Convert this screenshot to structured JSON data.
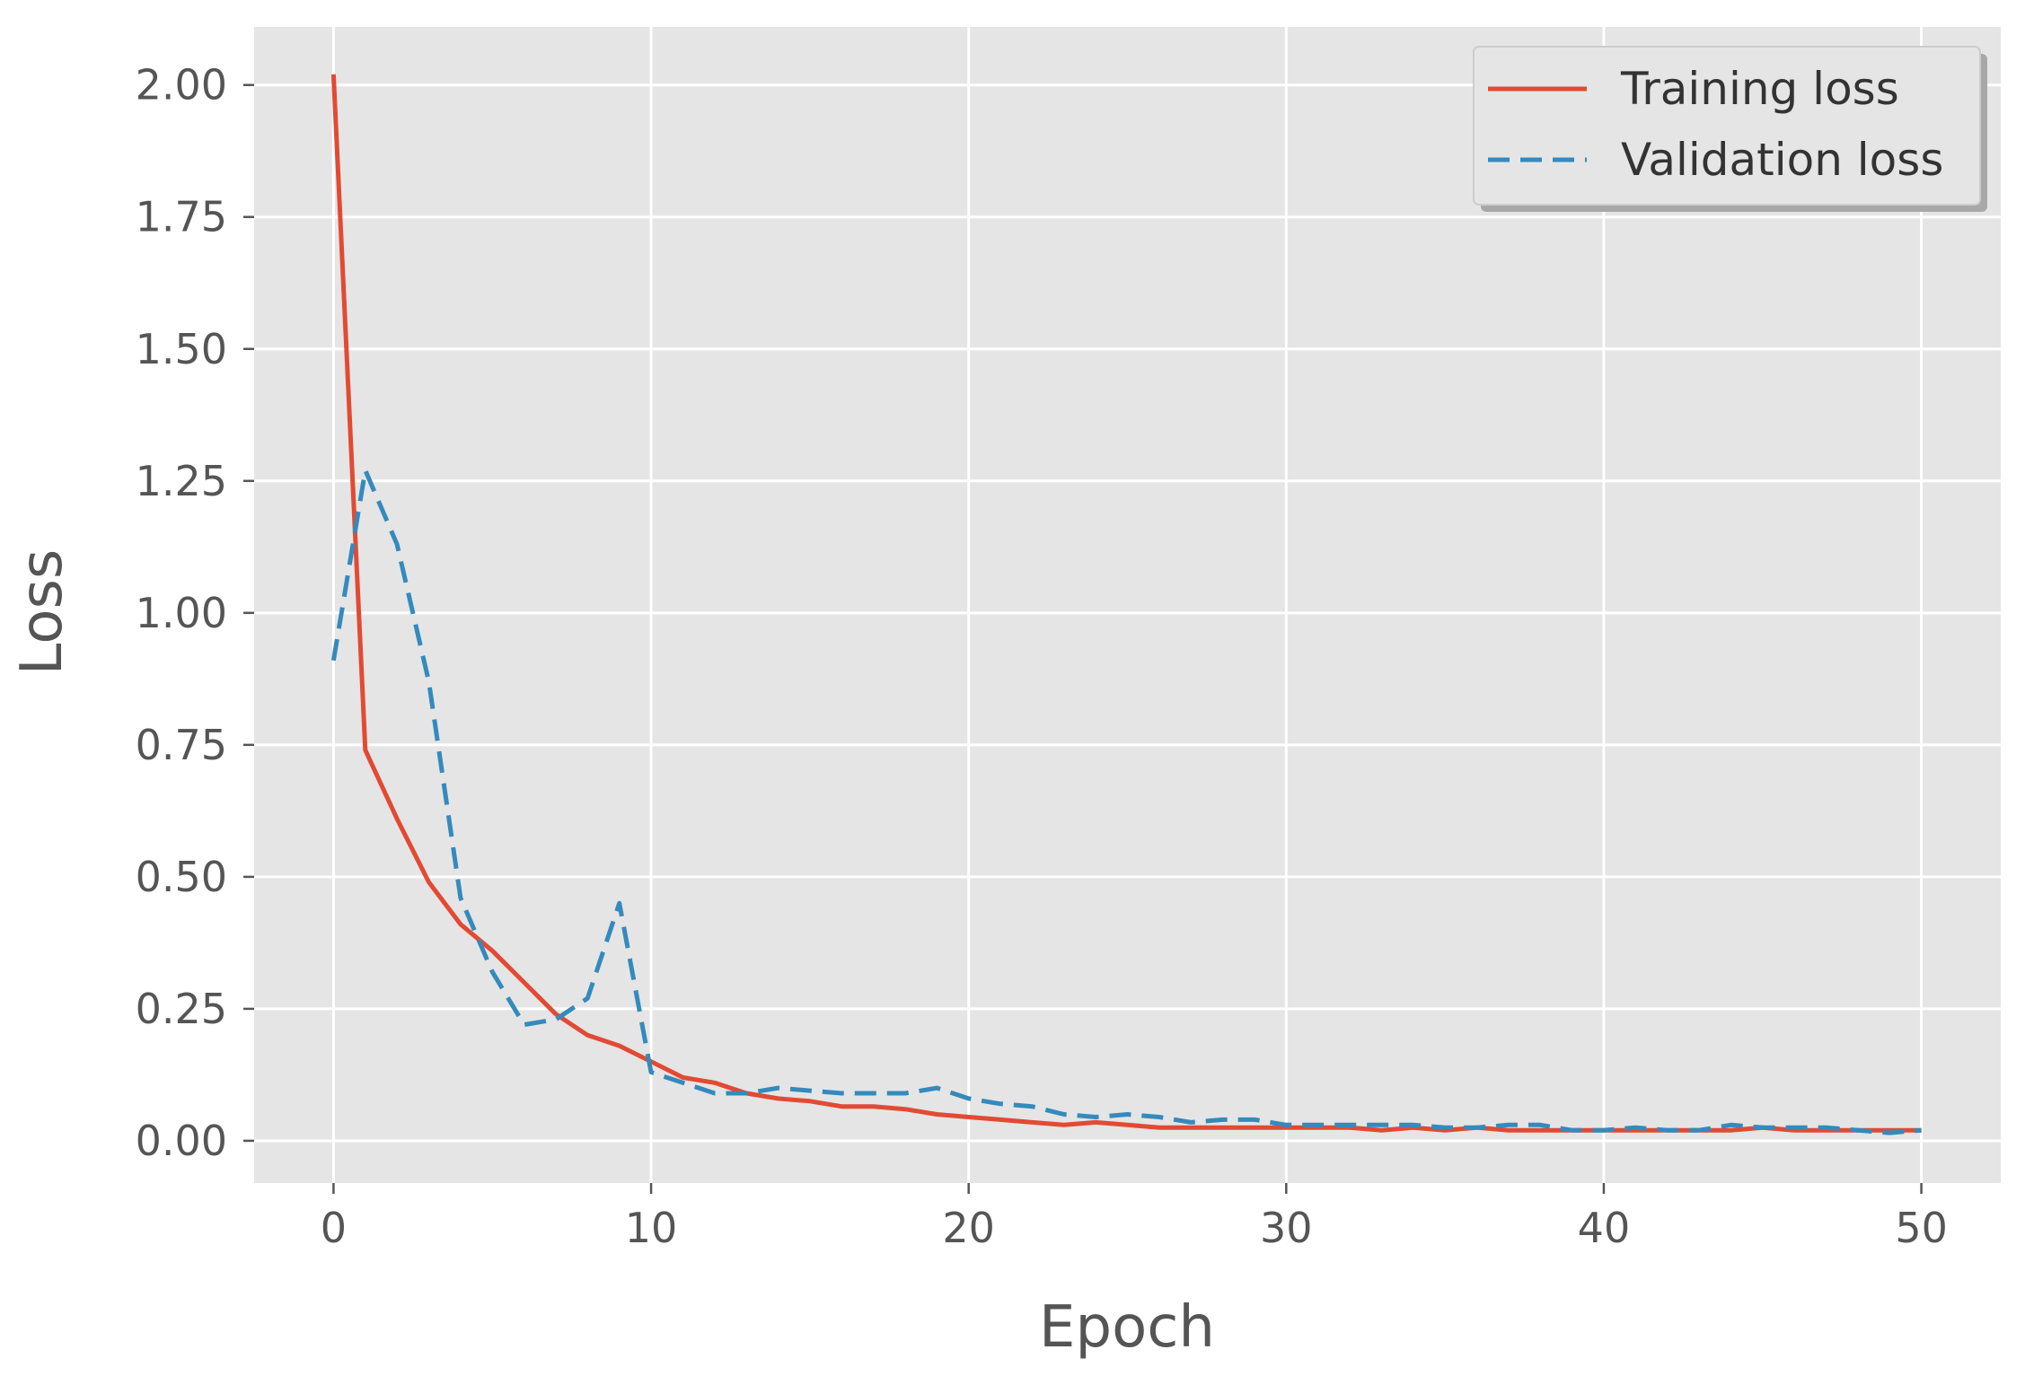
{
  "chart_data": {
    "type": "line",
    "title": "",
    "xlabel": "Epoch",
    "ylabel": "Loss",
    "xlim": [
      -2.5,
      52.5
    ],
    "ylim": [
      -0.08,
      2.11
    ],
    "xticks": [
      0,
      10,
      20,
      30,
      40,
      50
    ],
    "yticks": [
      0.0,
      0.25,
      0.5,
      0.75,
      1.0,
      1.25,
      1.5,
      1.75,
      2.0
    ],
    "ytick_labels": [
      "0.00",
      "0.25",
      "0.50",
      "0.75",
      "1.00",
      "1.25",
      "1.50",
      "1.75",
      "2.00"
    ],
    "grid": true,
    "background": "#e5e5e5",
    "legend_position": "top-right",
    "series": [
      {
        "name": "Training loss",
        "color": "#e24a33",
        "style": "solid",
        "x": [
          0,
          1,
          2,
          3,
          4,
          5,
          6,
          7,
          8,
          9,
          10,
          11,
          12,
          13,
          14,
          15,
          16,
          17,
          18,
          19,
          20,
          21,
          22,
          23,
          24,
          25,
          26,
          27,
          28,
          29,
          30,
          31,
          32,
          33,
          34,
          35,
          36,
          37,
          38,
          39,
          40,
          41,
          42,
          43,
          44,
          45,
          46,
          47,
          48,
          49,
          50
        ],
        "values": [
          2.02,
          0.74,
          0.61,
          0.49,
          0.41,
          0.36,
          0.3,
          0.24,
          0.2,
          0.18,
          0.15,
          0.12,
          0.11,
          0.09,
          0.08,
          0.075,
          0.065,
          0.065,
          0.06,
          0.05,
          0.045,
          0.04,
          0.035,
          0.03,
          0.035,
          0.03,
          0.025,
          0.025,
          0.025,
          0.025,
          0.025,
          0.025,
          0.025,
          0.02,
          0.025,
          0.02,
          0.025,
          0.02,
          0.02,
          0.02,
          0.02,
          0.02,
          0.02,
          0.02,
          0.02,
          0.025,
          0.02,
          0.02,
          0.02,
          0.02,
          0.02
        ]
      },
      {
        "name": "Validation loss",
        "color": "#348abd",
        "style": "dashed",
        "x": [
          0,
          1,
          2,
          3,
          4,
          5,
          6,
          7,
          8,
          9,
          10,
          11,
          12,
          13,
          14,
          15,
          16,
          17,
          18,
          19,
          20,
          21,
          22,
          23,
          24,
          25,
          26,
          27,
          28,
          29,
          30,
          31,
          32,
          33,
          34,
          35,
          36,
          37,
          38,
          39,
          40,
          41,
          42,
          43,
          44,
          45,
          46,
          47,
          48,
          49,
          50
        ],
        "values": [
          0.91,
          1.27,
          1.13,
          0.87,
          0.46,
          0.32,
          0.22,
          0.23,
          0.27,
          0.45,
          0.13,
          0.11,
          0.09,
          0.09,
          0.1,
          0.095,
          0.09,
          0.09,
          0.09,
          0.1,
          0.08,
          0.07,
          0.065,
          0.05,
          0.045,
          0.05,
          0.045,
          0.035,
          0.04,
          0.04,
          0.03,
          0.03,
          0.03,
          0.03,
          0.03,
          0.025,
          0.025,
          0.03,
          0.03,
          0.02,
          0.02,
          0.025,
          0.02,
          0.02,
          0.03,
          0.025,
          0.025,
          0.025,
          0.02,
          0.015,
          0.02
        ]
      }
    ]
  }
}
